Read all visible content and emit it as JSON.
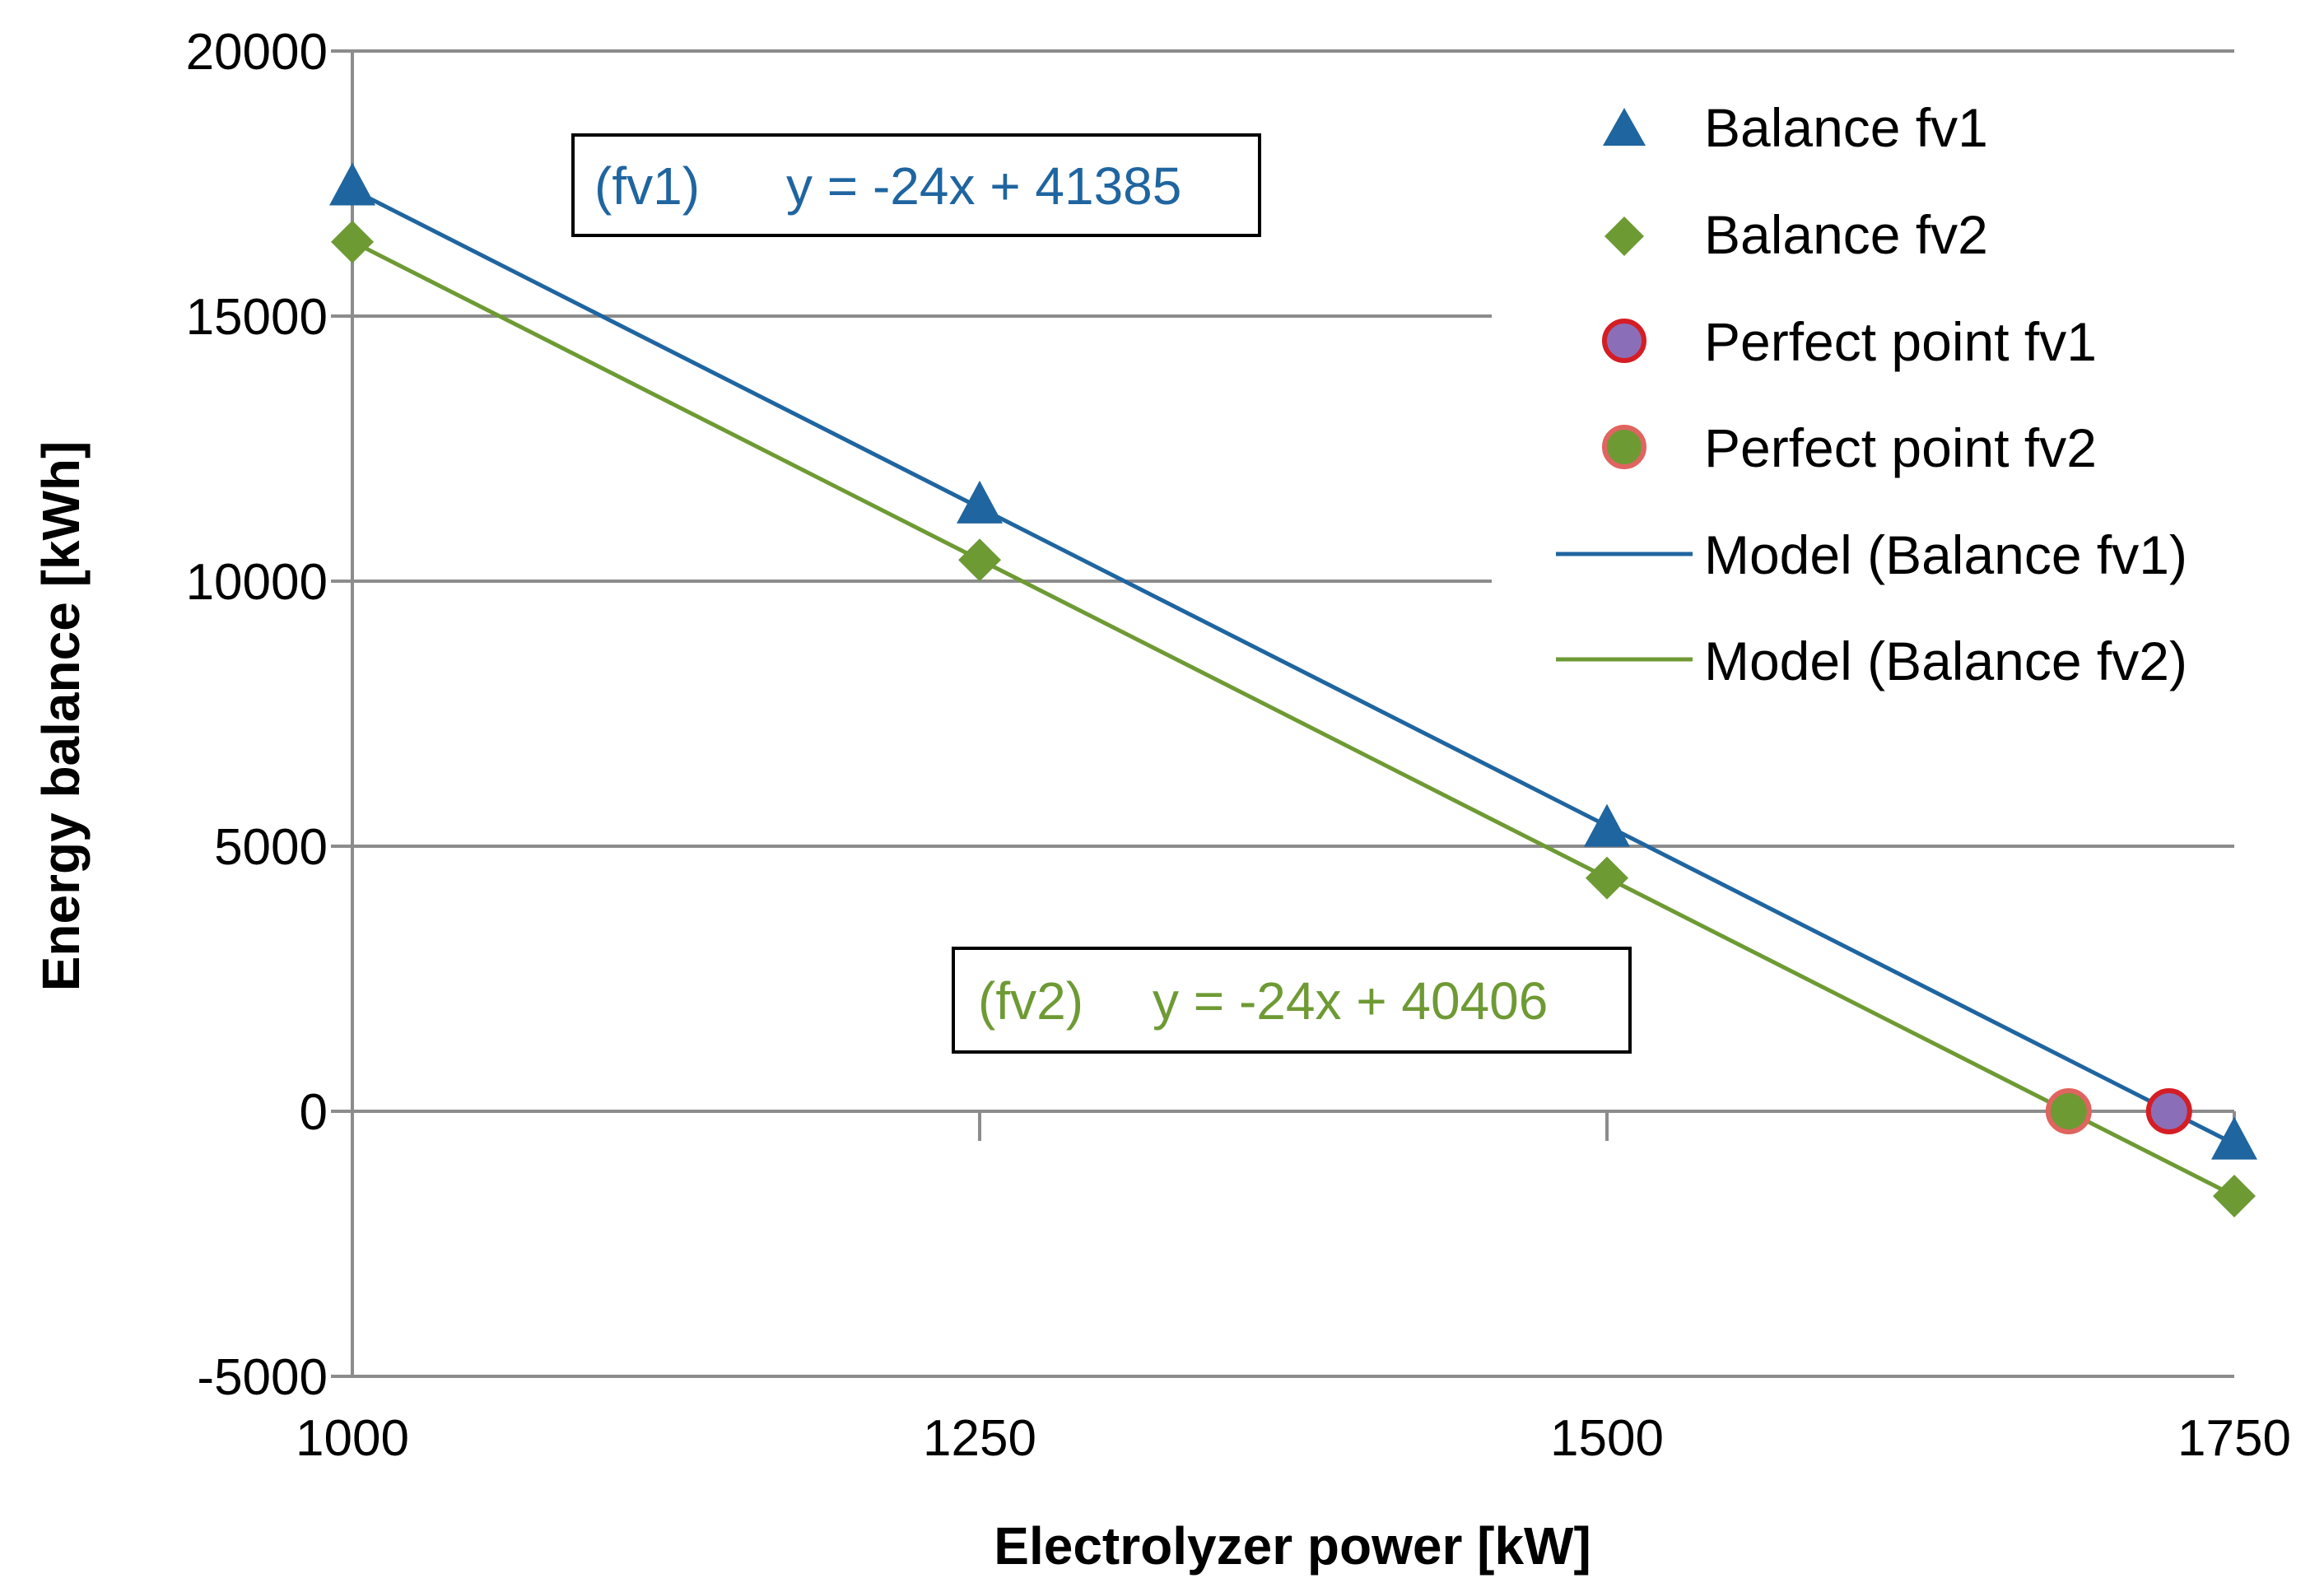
{
  "chart_data": {
    "type": "scatter",
    "title": "",
    "xlabel": "Electrolyzer power [kW]",
    "ylabel": "Energy balance [kWh]",
    "xlim": [
      1000,
      1750
    ],
    "ylim": [
      -5000,
      20000
    ],
    "x_ticks": [
      1000,
      1250,
      1500,
      1750
    ],
    "y_ticks": [
      -5000,
      0,
      5000,
      10000,
      15000,
      20000
    ],
    "grid": "horizontal",
    "legend_position": "top-right",
    "colors": {
      "fv1": "#1f65a0",
      "fv2": "#6e9a34",
      "perfect_fv1_fill": "#8a6fb8",
      "perfect_fv1_edge": "#d41d24",
      "perfect_fv2_fill": "#6e9a34",
      "perfect_fv2_edge": "#e0645f",
      "axis": "#8c8c8c",
      "grid": "#8c8c8c"
    },
    "series": [
      {
        "name": "Balance fv1",
        "kind": "points",
        "marker": "triangle",
        "color": "#1f65a0",
        "x": [
          1000,
          1250,
          1500,
          1750
        ],
        "y": [
          17400,
          11400,
          5300,
          -600
        ]
      },
      {
        "name": "Balance fv2",
        "kind": "points",
        "marker": "diamond",
        "color": "#6e9a34",
        "x": [
          1000,
          1250,
          1500,
          1750
        ],
        "y": [
          16400,
          10400,
          4400,
          -1600
        ]
      },
      {
        "name": "Perfect point fv1",
        "kind": "points",
        "marker": "circle",
        "color": "#8a6fb8",
        "edge": "#d41d24",
        "x": [
          1724
        ],
        "y": [
          0
        ]
      },
      {
        "name": "Perfect point fv2",
        "kind": "points",
        "marker": "circle",
        "color": "#6e9a34",
        "edge": "#e0645f",
        "x": [
          1684
        ],
        "y": [
          0
        ]
      },
      {
        "name": "Model (Balance fv1)",
        "kind": "line",
        "color": "#1f65a0",
        "x": [
          1000,
          1750
        ],
        "y": [
          17385,
          -615
        ]
      },
      {
        "name": "Model (Balance fv2)",
        "kind": "line",
        "color": "#6e9a34",
        "x": [
          1000,
          1750
        ],
        "y": [
          16406,
          -1594
        ]
      }
    ],
    "annotations": [
      {
        "id": "fv1",
        "tag": "(fv1)",
        "equation": "y = -24x + 41385",
        "color": "#1f65a0"
      },
      {
        "id": "fv2",
        "tag": "(fv2)",
        "equation": "y = -24x + 40406",
        "color": "#6e9a34"
      }
    ]
  }
}
